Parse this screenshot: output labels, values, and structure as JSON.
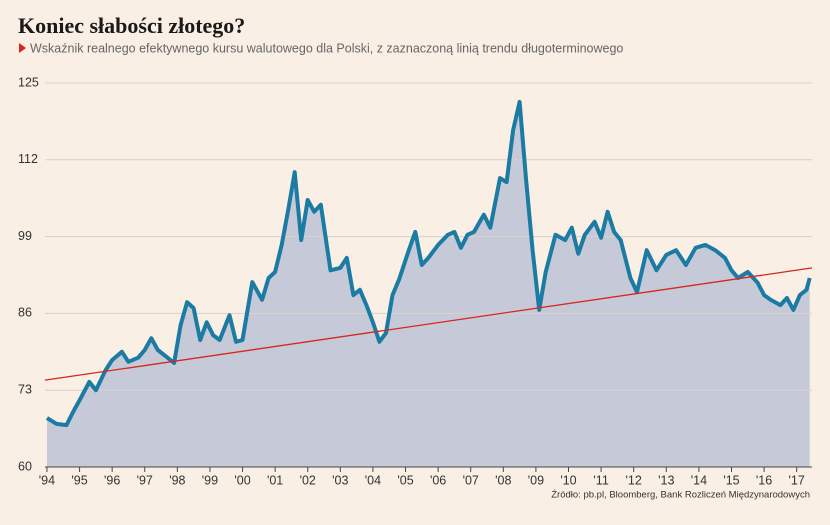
{
  "chart_data": {
    "type": "area",
    "title": "Koniec słabości złotego?",
    "subtitle": "Wskaźnik realnego efektywnego kursu walutowego dla Polski, z zaznaczoną linią trendu długoterminowego",
    "source": "Źródło: pb.pl, Bloomberg, Bank Rozliczeń Międzynarodowych",
    "xlim": [
      1993.94,
      2017.47
    ],
    "ylim": [
      60,
      125
    ],
    "yticks": [
      60,
      73,
      86,
      99,
      112,
      125
    ],
    "xticks": [
      {
        "value": 1994,
        "label": "'94"
      },
      {
        "value": 1995,
        "label": "'95"
      },
      {
        "value": 1996,
        "label": "'96"
      },
      {
        "value": 1997,
        "label": "'97"
      },
      {
        "value": 1998,
        "label": "'98"
      },
      {
        "value": 1999,
        "label": "'99"
      },
      {
        "value": 2000,
        "label": "'00"
      },
      {
        "value": 2001,
        "label": "'01"
      },
      {
        "value": 2002,
        "label": "'02"
      },
      {
        "value": 2003,
        "label": "'03"
      },
      {
        "value": 2004,
        "label": "'04"
      },
      {
        "value": 2005,
        "label": "'05"
      },
      {
        "value": 2006,
        "label": "'06"
      },
      {
        "value": 2007,
        "label": "'07"
      },
      {
        "value": 2008,
        "label": "'08"
      },
      {
        "value": 2009,
        "label": "'09"
      },
      {
        "value": 2010,
        "label": "'10"
      },
      {
        "value": 2011,
        "label": "'11"
      },
      {
        "value": 2012,
        "label": "'12"
      },
      {
        "value": 2013,
        "label": "'13"
      },
      {
        "value": 2014,
        "label": "'14"
      },
      {
        "value": 2015,
        "label": "'15"
      },
      {
        "value": 2016,
        "label": "'16"
      },
      {
        "value": 2017,
        "label": "'17"
      }
    ],
    "grid": true,
    "series": [
      {
        "color": "#1c7ba3",
        "fill": "#c6cad8",
        "x": [
          1994.0,
          1994.3,
          1994.6,
          1994.8,
          1995.0,
          1995.3,
          1995.5,
          1995.8,
          1996.0,
          1996.3,
          1996.5,
          1996.8,
          1997.0,
          1997.2,
          1997.4,
          1997.7,
          1997.9,
          1998.1,
          1998.3,
          1998.5,
          1998.7,
          1998.9,
          1999.1,
          1999.3,
          1999.6,
          1999.8,
          2000.0,
          2000.3,
          2000.6,
          2000.8,
          2001.0,
          2001.2,
          2001.4,
          2001.6,
          2001.8,
          2002.0,
          2002.2,
          2002.4,
          2002.7,
          2003.0,
          2003.2,
          2003.4,
          2003.6,
          2003.8,
          2004.0,
          2004.2,
          2004.4,
          2004.6,
          2004.8,
          2005.1,
          2005.3,
          2005.5,
          2005.7,
          2006.0,
          2006.3,
          2006.5,
          2006.7,
          2006.9,
          2007.1,
          2007.4,
          2007.6,
          2007.9,
          2008.1,
          2008.3,
          2008.5,
          2008.7,
          2008.9,
          2009.1,
          2009.3,
          2009.6,
          2009.9,
          2010.1,
          2010.3,
          2010.5,
          2010.8,
          2011.0,
          2011.2,
          2011.4,
          2011.6,
          2011.9,
          2012.1,
          2012.4,
          2012.7,
          2013.0,
          2013.3,
          2013.6,
          2013.9,
          2014.2,
          2014.5,
          2014.8,
          2015.0,
          2015.2,
          2015.5,
          2015.8,
          2016.0,
          2016.2,
          2016.5,
          2016.7,
          2016.9,
          2017.1,
          2017.3,
          2017.4
        ],
        "values": [
          68.3,
          67.3,
          67.1,
          69.3,
          71.3,
          74.4,
          73.0,
          76.4,
          78.1,
          79.5,
          77.8,
          78.5,
          79.8,
          81.8,
          79.8,
          78.5,
          77.6,
          84.0,
          87.9,
          86.9,
          81.5,
          84.5,
          82.3,
          81.5,
          85.7,
          81.2,
          81.5,
          91.3,
          88.3,
          92.0,
          93.0,
          97.6,
          103.5,
          109.9,
          98.4,
          105.2,
          103.2,
          104.4,
          93.3,
          93.7,
          95.4,
          89.1,
          90.0,
          87.4,
          84.5,
          81.2,
          82.7,
          89.1,
          91.7,
          96.7,
          99.8,
          94.2,
          95.4,
          97.6,
          99.3,
          99.8,
          97.1,
          99.3,
          99.8,
          102.7,
          100.5,
          108.9,
          108.2,
          117.0,
          121.8,
          108.6,
          96.7,
          86.6,
          93.0,
          99.3,
          98.4,
          100.5,
          96.1,
          99.3,
          101.5,
          98.8,
          103.2,
          99.8,
          98.4,
          92.0,
          89.6,
          96.7,
          93.3,
          95.9,
          96.7,
          94.2,
          97.1,
          97.6,
          96.7,
          95.4,
          93.3,
          92.0,
          93.0,
          91.2,
          89.1,
          88.3,
          87.4,
          88.6,
          86.6,
          89.1,
          90.0,
          92.0
        ]
      }
    ],
    "trend": {
      "color": "#d7261e",
      "x": [
        1993.94,
        2017.47
      ],
      "values": [
        74.7,
        93.7
      ]
    }
  }
}
